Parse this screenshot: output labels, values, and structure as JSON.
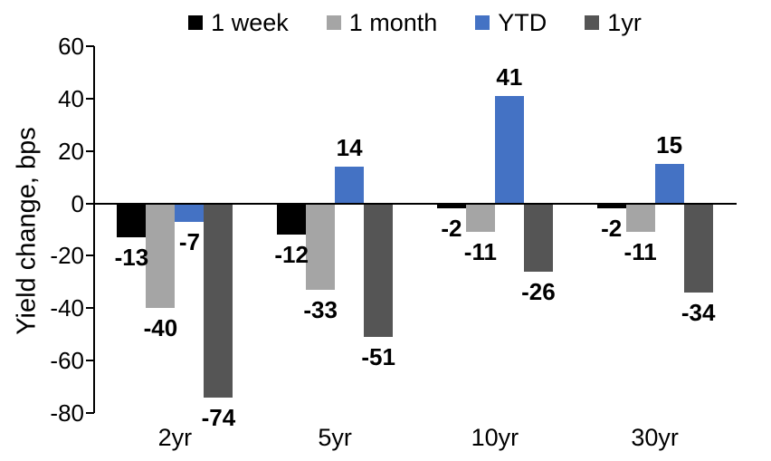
{
  "chart_data": {
    "type": "bar",
    "title": "",
    "xlabel": "",
    "ylabel": "Yield change, bps",
    "categories": [
      "2yr",
      "5yr",
      "10yr",
      "30yr"
    ],
    "series": [
      {
        "name": "1 week",
        "color": "#000000",
        "values": [
          -13,
          -12,
          -2,
          -2
        ]
      },
      {
        "name": "1 month",
        "color": "#A5A5A5",
        "values": [
          -40,
          -33,
          -11,
          -11
        ]
      },
      {
        "name": "YTD",
        "color": "#4472C4",
        "values": [
          -7,
          14,
          41,
          15
        ]
      },
      {
        "name": "1yr",
        "color": "#555555",
        "values": [
          -74,
          -51,
          -26,
          -34
        ]
      }
    ],
    "ylim": [
      -80,
      60
    ],
    "yticks": [
      60,
      40,
      20,
      0,
      -20,
      -40,
      -60,
      -80
    ],
    "grid": false,
    "legend_position": "top",
    "data_labels": "outside-end",
    "axis_color": "#000000",
    "background_color": "#FFFFFF"
  }
}
